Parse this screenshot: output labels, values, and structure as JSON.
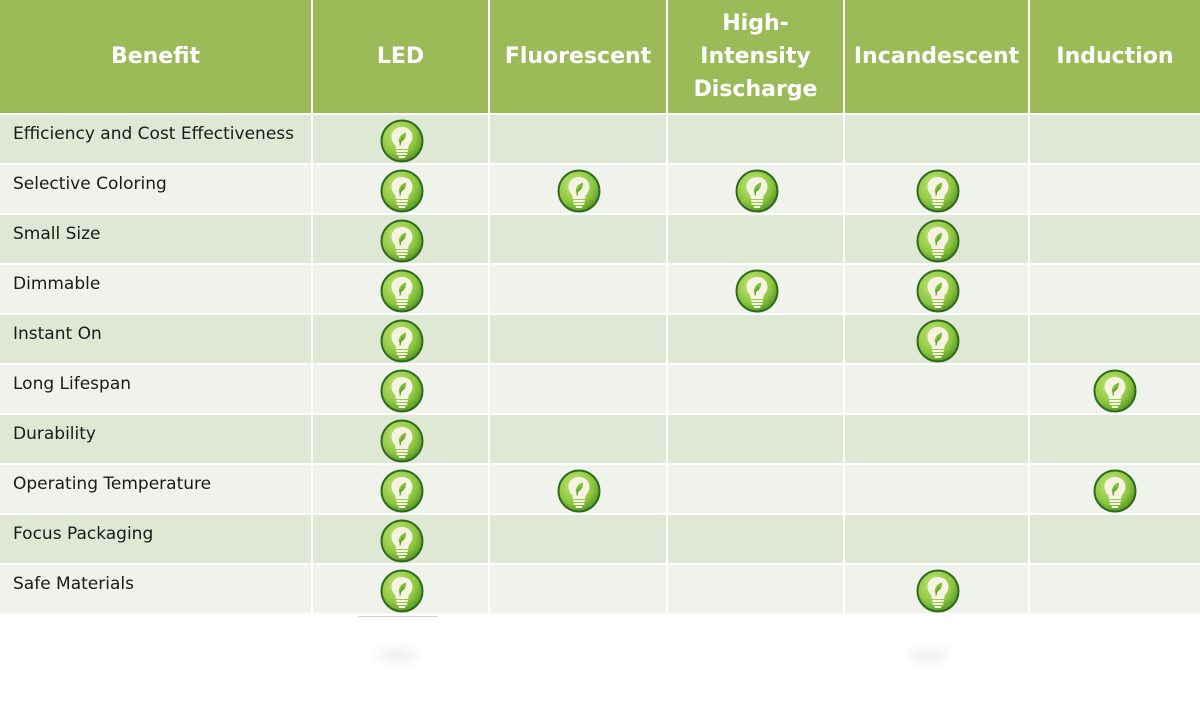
{
  "header": {
    "benefit": "Benefit",
    "columns": [
      "LED",
      "Fluorescent",
      "High-Intensity Discharge",
      "Incandescent",
      "Induction"
    ]
  },
  "rows": [
    {
      "label": "Efficiency and Cost Effectiveness",
      "marks": [
        true,
        false,
        false,
        false,
        false
      ]
    },
    {
      "label": "Selective Coloring",
      "marks": [
        true,
        true,
        true,
        true,
        false
      ]
    },
    {
      "label": "Small Size",
      "marks": [
        true,
        false,
        false,
        true,
        false
      ]
    },
    {
      "label": "Dimmable",
      "marks": [
        true,
        false,
        true,
        true,
        false
      ]
    },
    {
      "label": "Instant On",
      "marks": [
        true,
        false,
        false,
        true,
        false
      ]
    },
    {
      "label": "Long Lifespan",
      "marks": [
        true,
        false,
        false,
        false,
        true
      ]
    },
    {
      "label": "Durability",
      "marks": [
        true,
        false,
        false,
        false,
        false
      ]
    },
    {
      "label": "Operating Temperature",
      "marks": [
        true,
        true,
        false,
        false,
        true
      ]
    },
    {
      "label": "Focus Packaging",
      "marks": [
        true,
        false,
        false,
        false,
        false
      ]
    },
    {
      "label": "Safe Materials",
      "marks": [
        true,
        false,
        false,
        true,
        false
      ]
    }
  ],
  "icon": "lightbulb-leaf-icon",
  "colors": {
    "header": "#9bbb59",
    "row_odd": "#dfe8d5",
    "row_even": "#eff3eb",
    "bulb_ring": "#2e6b1e",
    "bulb_fill": "#8cc63f"
  }
}
